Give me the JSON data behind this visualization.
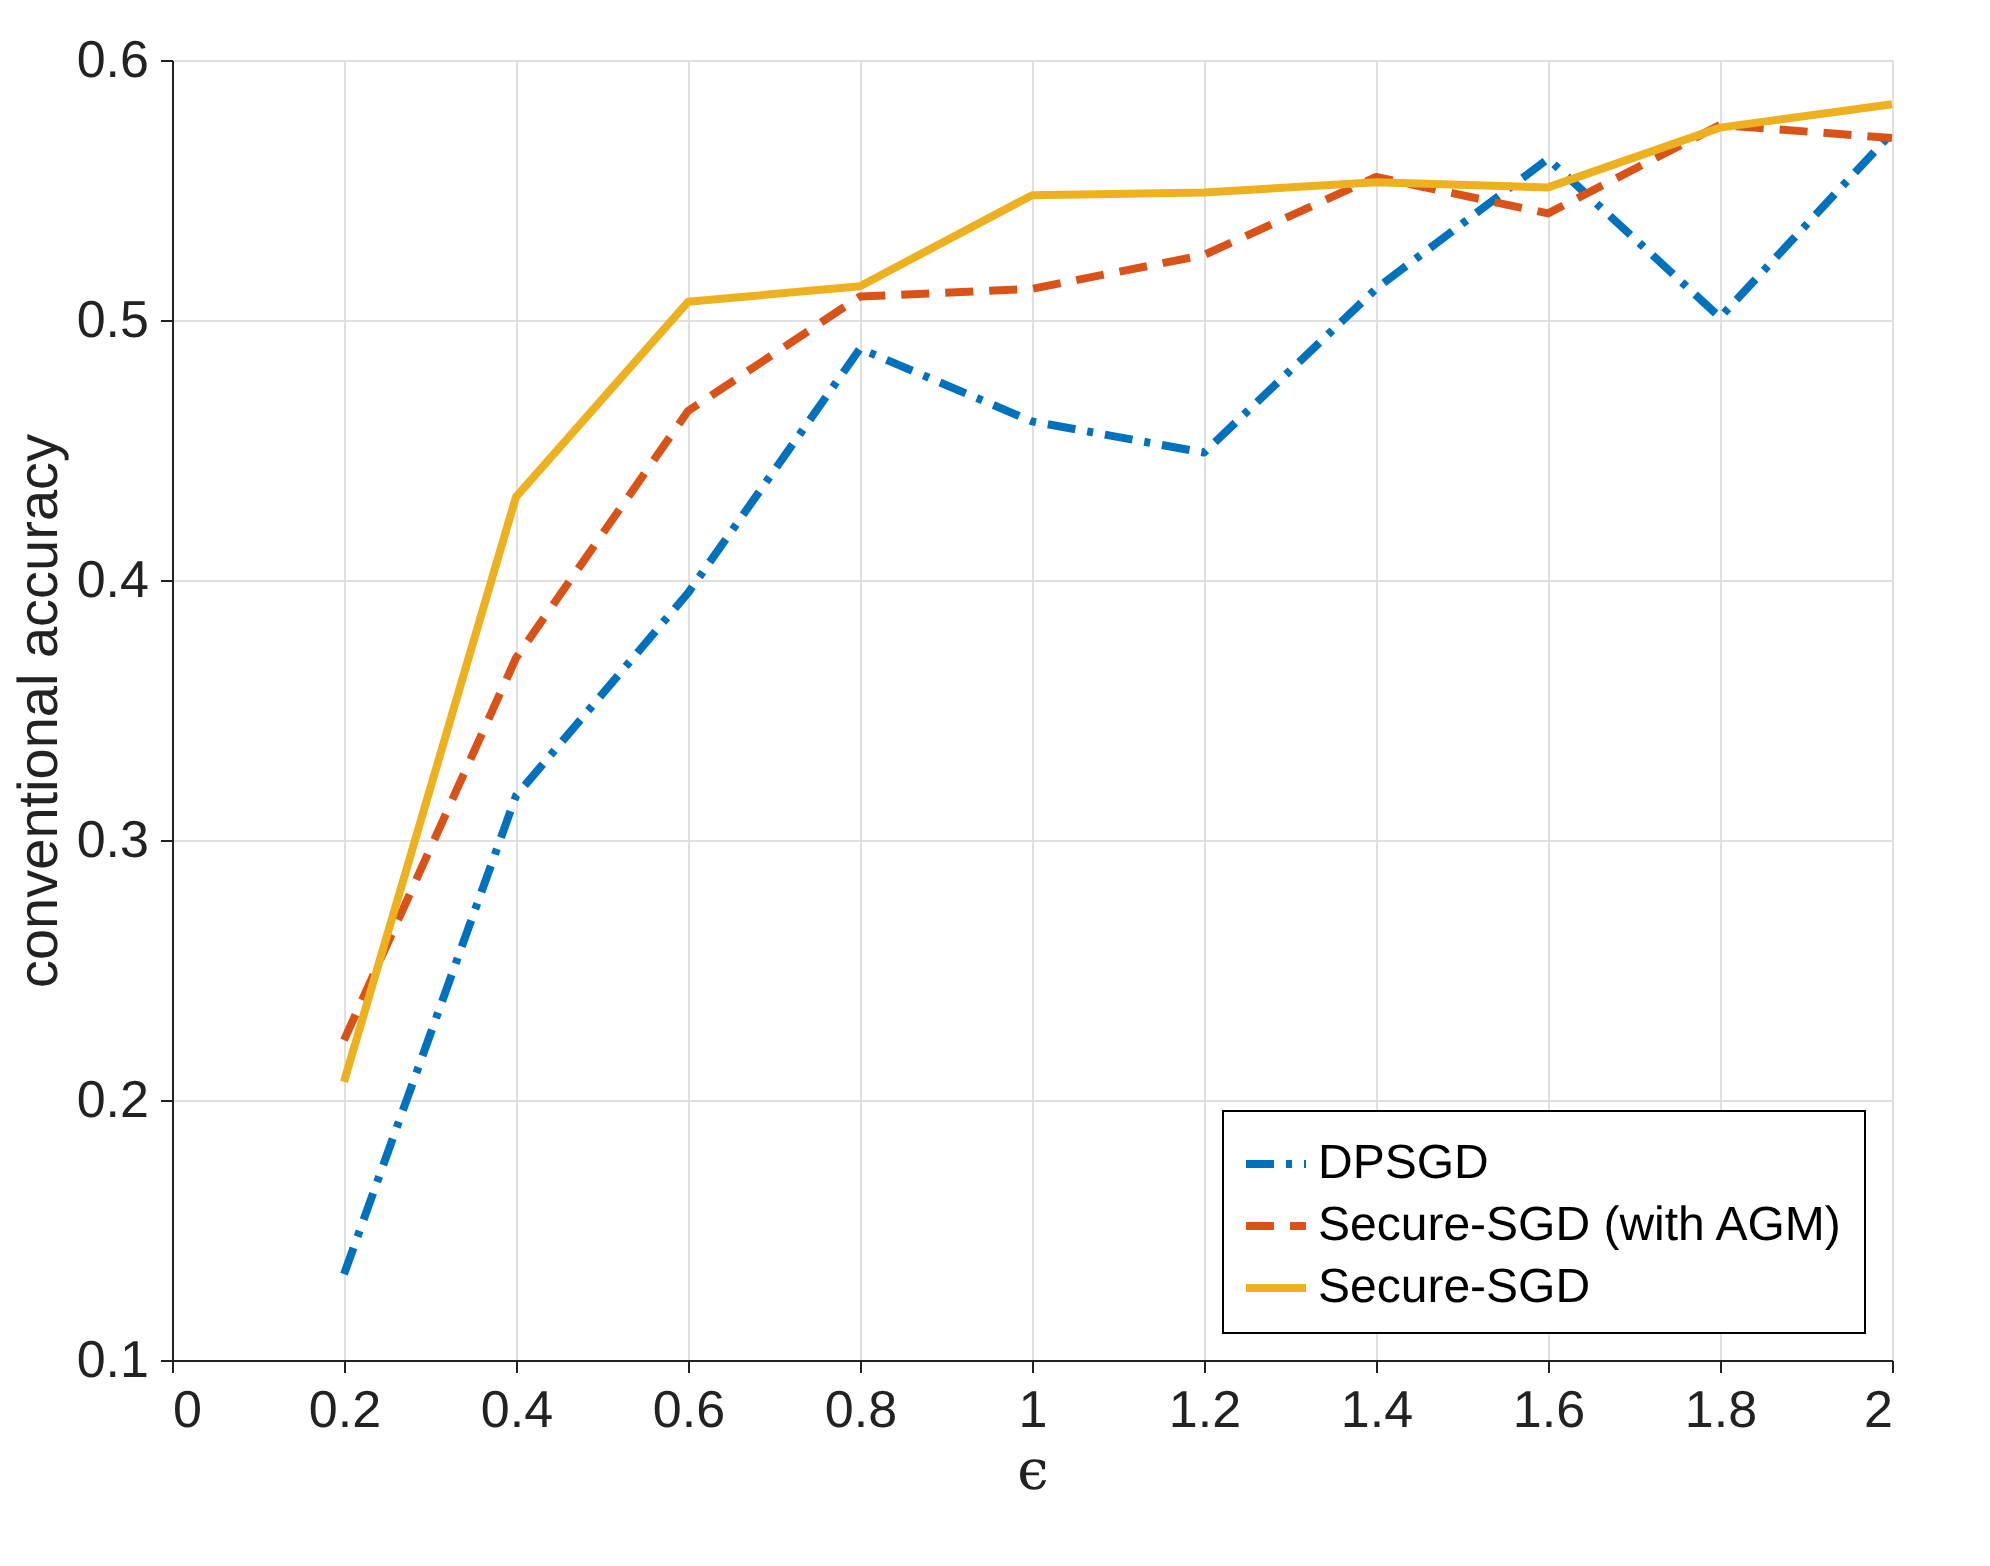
{
  "chart_data": {
    "type": "line",
    "xlabel": "ϵ",
    "ylabel": "conventional accuracy",
    "x": [
      0.2,
      0.4,
      0.6,
      0.8,
      1.0,
      1.2,
      1.4,
      1.6,
      1.8,
      2.0
    ],
    "series": [
      {
        "name": "DPSGD",
        "color": "#0072bd",
        "line_style": "dashdot",
        "values": [
          0.133,
          0.317,
          0.395,
          0.489,
          0.461,
          0.449,
          0.512,
          0.562,
          0.501,
          0.572
        ]
      },
      {
        "name": "Secure-SGD (with AGM)",
        "color": "#d95319",
        "line_style": "dashed",
        "values": [
          0.223,
          0.37,
          0.465,
          0.509,
          0.512,
          0.525,
          0.555,
          0.541,
          0.575,
          0.57
        ]
      },
      {
        "name": "Secure-SGD",
        "color": "#edb120",
        "line_style": "solid",
        "values": [
          0.207,
          0.432,
          0.507,
          0.513,
          0.548,
          0.549,
          0.553,
          0.551,
          0.574,
          0.583
        ]
      }
    ],
    "xlim": [
      0,
      2
    ],
    "xticks": [
      0,
      0.2,
      0.4,
      0.6,
      0.8,
      1,
      1.2,
      1.4,
      1.6,
      1.8,
      2
    ],
    "ylim": [
      0.1,
      0.6
    ],
    "yticks": [
      0.1,
      0.2,
      0.3,
      0.4,
      0.5,
      0.6
    ],
    "grid": true,
    "legend": "bottom right",
    "marker": "none"
  }
}
